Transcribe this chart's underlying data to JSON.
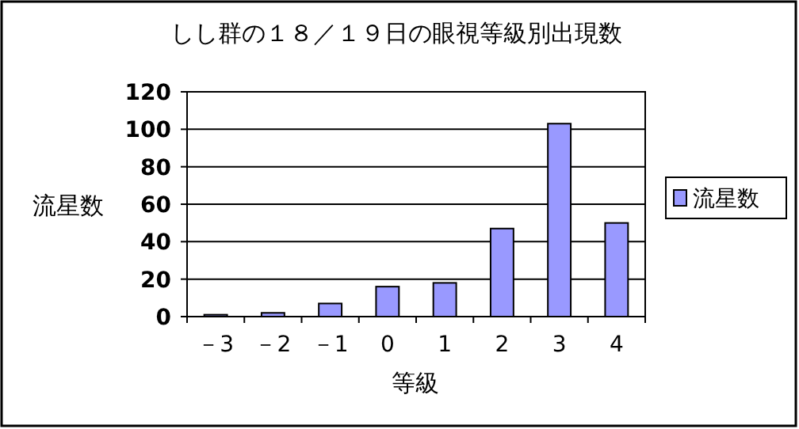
{
  "chart_data": {
    "type": "bar",
    "title": "しし群の１８／１９日の眼視等級別出現数",
    "xlabel": "等級",
    "ylabel": "流星数",
    "categories": [
      "－3",
      "－2",
      "－1",
      "0",
      "1",
      "2",
      "3",
      "4"
    ],
    "series": [
      {
        "name": "流星数",
        "color": "#9999ff",
        "values": [
          1,
          2,
          7,
          16,
          18,
          47,
          103,
          50
        ]
      }
    ],
    "ylim": [
      0,
      120
    ],
    "yticks": [
      0,
      20,
      40,
      60,
      80,
      100,
      120
    ],
    "grid": "y",
    "legend": "right"
  }
}
